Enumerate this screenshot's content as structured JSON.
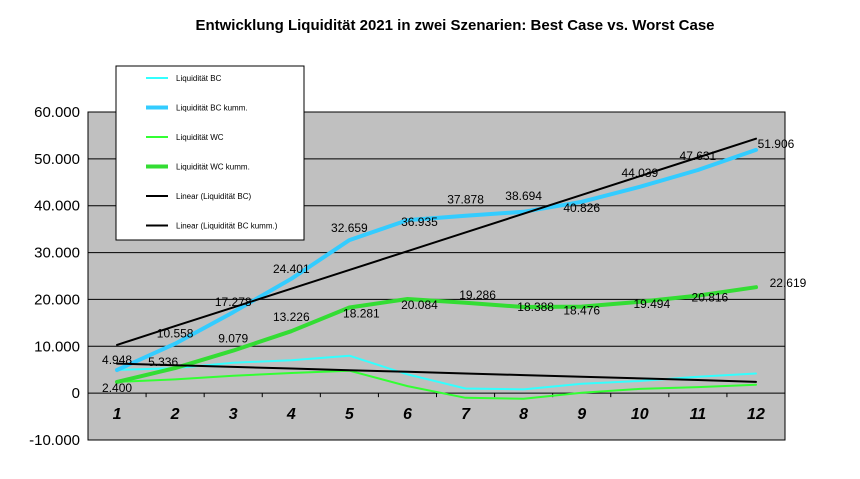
{
  "chart_data": {
    "type": "line",
    "title": "Entwicklung Liquidität 2021  in zwei Szenarien: Best  Case vs. Worst Case",
    "xlabel": "",
    "ylabel": "",
    "categories": [
      "1",
      "2",
      "3",
      "4",
      "5",
      "6",
      "7",
      "8",
      "9",
      "10",
      "11",
      "12"
    ],
    "yticks": [
      "60.000",
      "50.000",
      "40.000",
      "30.000",
      "20.000",
      "10.000",
      "0",
      "-10.000"
    ],
    "ylim": [
      -10000,
      60000
    ],
    "grid": true,
    "plot_background": "#c0c0c0",
    "legend_position": "top-left",
    "series": [
      {
        "name": "Liquidität BC",
        "color": "#33ffff",
        "width": 2,
        "values": [
          4948,
          5336,
          6500,
          7000,
          8000,
          4000,
          1000,
          800,
          2000,
          2600,
          3500,
          4200
        ]
      },
      {
        "name": "Liquidität BC kumm.",
        "color": "#33ccff",
        "width": 4,
        "values": [
          4948,
          10558,
          17278,
          24401,
          32659,
          36935,
          37878,
          38694,
          40826,
          44039,
          47631,
          51906
        ],
        "labels": [
          "4.948",
          "10.558",
          "17.278",
          "24.401",
          "32.659",
          "36.935",
          "37.878",
          "38.694",
          "40.826",
          "44.039",
          "47.631",
          "51.906"
        ]
      },
      {
        "name": "Liquidität WC",
        "color": "#33ff33",
        "width": 2,
        "values": [
          2400,
          2936,
          3700,
          4300,
          4800,
          1500,
          -1000,
          -1200,
          100,
          900,
          1300,
          1800
        ]
      },
      {
        "name": "Liquidität WC kumm.",
        "color": "#33dd33",
        "width": 4,
        "values": [
          2400,
          5336,
          9079,
          13226,
          18281,
          20084,
          19286,
          18388,
          18476,
          19494,
          20816,
          22619
        ],
        "labels": [
          "2.400",
          "5.336",
          "9.079",
          "13.226",
          "18.281",
          "20.084",
          "19.286",
          "18.388",
          "18.476",
          "19.494",
          "20.816",
          "22.619"
        ]
      },
      {
        "name": "Linear (Liquidität BC)",
        "color": "#000000",
        "width": 2,
        "values": [
          6300,
          5950,
          5600,
          5250,
          4900,
          4550,
          4200,
          3850,
          3500,
          3150,
          2800,
          2400
        ]
      },
      {
        "name": "Linear (Liquidität BC kumm.)",
        "color": "#000000",
        "width": 2,
        "values": [
          10300,
          14300,
          18300,
          22300,
          26300,
          30300,
          34300,
          38300,
          42300,
          46300,
          50300,
          54300
        ]
      }
    ]
  }
}
